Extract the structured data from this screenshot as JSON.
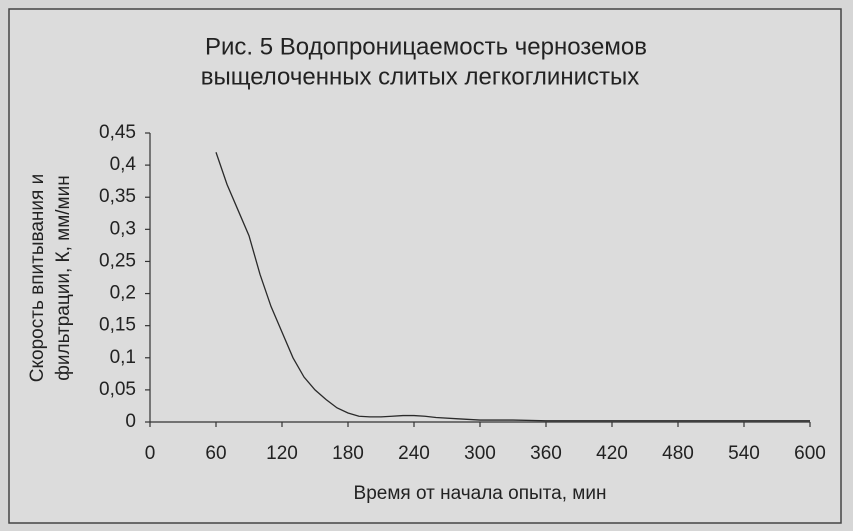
{
  "chart_data": {
    "type": "line",
    "title": [
      "Рис. 5  Водопроницаемость черноземов",
      "выщелоченных слитых легкоглинистых"
    ],
    "y_label": [
      "Скорость впитывания и",
      "фильтрации, К, мм/мин"
    ],
    "x_label": "Время от начала опыта, мин",
    "color": "#2a2a2a",
    "x": [
      60,
      70,
      80,
      90,
      100,
      110,
      120,
      130,
      140,
      150,
      160,
      170,
      180,
      190,
      200,
      210,
      220,
      230,
      240,
      250,
      260,
      280,
      300,
      330,
      360,
      420,
      480,
      540,
      600
    ],
    "values": [
      0.42,
      0.37,
      0.33,
      0.29,
      0.23,
      0.18,
      0.14,
      0.1,
      0.07,
      0.05,
      0.035,
      0.022,
      0.014,
      0.009,
      0.008,
      0.008,
      0.009,
      0.01,
      0.01,
      0.009,
      0.007,
      0.005,
      0.003,
      0.003,
      0.002,
      0.002,
      0.002,
      0.002,
      0.002
    ],
    "xlim": [
      0,
      600
    ],
    "xticks": [
      0,
      60,
      120,
      180,
      240,
      300,
      360,
      420,
      480,
      540,
      600
    ],
    "ylim": [
      0,
      0.45
    ],
    "yticks": [
      0,
      {
        "value": 0.05,
        "label": "0,05"
      },
      {
        "value": 0.1,
        "label": "0,1"
      },
      {
        "value": 0.15,
        "label": "0,15"
      },
      {
        "value": 0.2,
        "label": "0,2"
      },
      {
        "value": 0.25,
        "label": "0,25"
      },
      {
        "value": 0.3,
        "label": "0,3"
      },
      {
        "value": 0.35,
        "label": "0,35"
      },
      {
        "value": 0.4,
        "label": "0,4"
      },
      {
        "value": 0.45,
        "label": "0,45"
      }
    ]
  }
}
